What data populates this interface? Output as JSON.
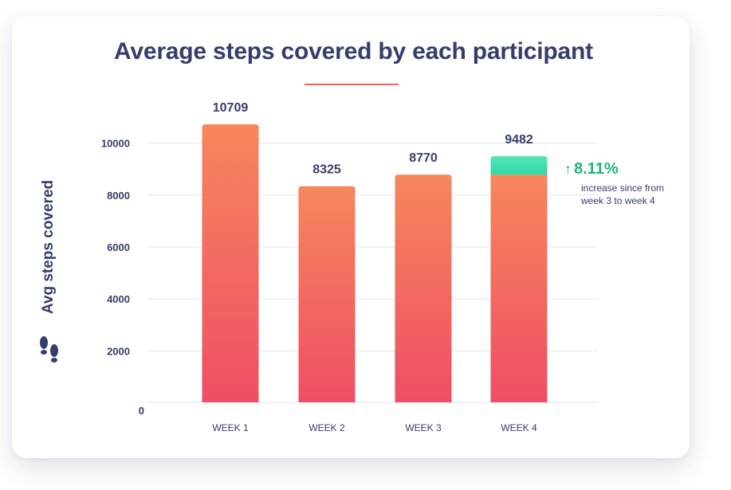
{
  "chart_data": {
    "type": "bar",
    "title": "Average steps covered by each participant",
    "xlabel": "",
    "ylabel": "Avg steps covered",
    "categories": [
      "WEEK 1",
      "WEEK 2",
      "WEEK 3",
      "WEEK 4"
    ],
    "values": [
      10709,
      8325,
      8770,
      9482
    ],
    "value_labels": [
      "10709",
      "8325",
      "8770",
      "9482"
    ],
    "highlight": {
      "category": "WEEK 4",
      "base_value": 8770,
      "increase_label": "8.11%",
      "increase_note": [
        "increase since from",
        "week 3 to week 4"
      ]
    },
    "yticks": [
      0,
      2000,
      4000,
      6000,
      8000,
      10000
    ],
    "ylim": [
      0,
      10709
    ],
    "grid": true,
    "colors": {
      "bar_top": "#f6875c",
      "bar_bottom": "#ef4e65",
      "increase_top": "#55e6b3",
      "increase_bottom": "#32d8a7",
      "positive_text": "#1fb57e",
      "title_text": "#363d6b",
      "accent_rule": "#ef6162",
      "grid": "#e6e6ee"
    }
  },
  "icons": {
    "ylabel_icon": "footprints-icon",
    "increase_icon": "arrow-up-icon"
  }
}
